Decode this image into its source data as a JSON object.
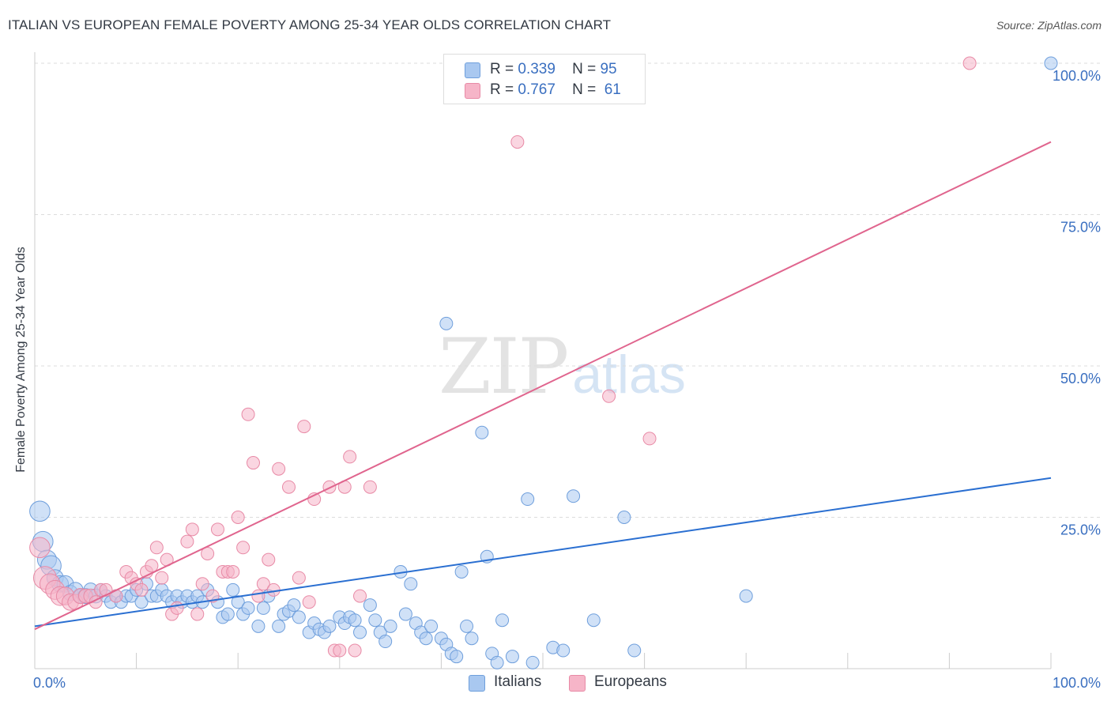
{
  "title": "ITALIAN VS EUROPEAN FEMALE POVERTY AMONG 25-34 YEAR OLDS CORRELATION CHART",
  "source": "Source: ZipAtlas.com",
  "watermark": {
    "zip": "ZIP",
    "atlas": "atlas"
  },
  "legend": {
    "r_label": "R =",
    "n_label": "N =",
    "italians": {
      "r": "0.339",
      "n": "95"
    },
    "europeans": {
      "r": "0.767",
      "n": "61"
    }
  },
  "chart_data": {
    "type": "scatter",
    "ylabel": "Female Poverty Among 25-34 Year Olds",
    "xlim": [
      0,
      100
    ],
    "ylim": [
      0,
      100
    ],
    "x_tick_labels": [
      "0.0%",
      "100.0%"
    ],
    "y_tick_labels": [
      {
        "value": 25,
        "label": "25.0%"
      },
      {
        "value": 50,
        "label": "50.0%"
      },
      {
        "value": 75,
        "label": "75.0%"
      },
      {
        "value": 100,
        "label": "100.0%"
      }
    ],
    "grid": true,
    "series": [
      {
        "name": "Italians",
        "color": "#a9c8f0",
        "stroke": "#6f9fdc",
        "trend_color": "#2a6fd1",
        "trend": {
          "x0": 0,
          "y0": 7.0,
          "x1": 100,
          "y1": 31.5
        },
        "points": [
          [
            0.5,
            26,
            1.6
          ],
          [
            0.8,
            21,
            1.6
          ],
          [
            1.2,
            18,
            1.5
          ],
          [
            1.6,
            17,
            1.6
          ],
          [
            2,
            15,
            1.3
          ],
          [
            2.5,
            14,
            1.3
          ],
          [
            3,
            14,
            1.3
          ],
          [
            3.5,
            12.5,
            1.2
          ],
          [
            4,
            13,
            1.2
          ],
          [
            4.5,
            12,
            1.1
          ],
          [
            5,
            12,
            1.2
          ],
          [
            5.5,
            13,
            1.1
          ],
          [
            6,
            12,
            1.1
          ],
          [
            6.5,
            13,
            1.0
          ],
          [
            7,
            12,
            1.0
          ],
          [
            7.5,
            11,
            1.0
          ],
          [
            8,
            12,
            1.0
          ],
          [
            8.5,
            11,
            1.0
          ],
          [
            9,
            12,
            1.0
          ],
          [
            9.5,
            12,
            1.0
          ],
          [
            10,
            13,
            1.0
          ],
          [
            10.5,
            11,
            1.0
          ],
          [
            11,
            14,
            1.0
          ],
          [
            11.5,
            12,
            1.0
          ],
          [
            12,
            12,
            1.0
          ],
          [
            12.5,
            13,
            1.0
          ],
          [
            13,
            12,
            1.0
          ],
          [
            13.5,
            11,
            1.0
          ],
          [
            14,
            12,
            1.0
          ],
          [
            14.5,
            11,
            1.0
          ],
          [
            15,
            12,
            1.0
          ],
          [
            15.5,
            11,
            1.0
          ],
          [
            16,
            12,
            1.0
          ],
          [
            16.5,
            11,
            1.0
          ],
          [
            17,
            13,
            1.0
          ],
          [
            18,
            11,
            1.0
          ],
          [
            18.5,
            8.5,
            1.0
          ],
          [
            19,
            9,
            1.0
          ],
          [
            19.5,
            13,
            1.0
          ],
          [
            20,
            11,
            1.0
          ],
          [
            20.5,
            9,
            1.0
          ],
          [
            21,
            10,
            1.0
          ],
          [
            22,
            7,
            1.0
          ],
          [
            22.5,
            10,
            1.0
          ],
          [
            23,
            12,
            1.0
          ],
          [
            24,
            7,
            1.0
          ],
          [
            24.5,
            9,
            1.0
          ],
          [
            25,
            9.5,
            1.0
          ],
          [
            25.5,
            10.5,
            1.0
          ],
          [
            26,
            8.5,
            1.0
          ],
          [
            27,
            6,
            1.0
          ],
          [
            27.5,
            7.5,
            1.0
          ],
          [
            28,
            6.5,
            1.0
          ],
          [
            28.5,
            6,
            1.0
          ],
          [
            29,
            7,
            1.0
          ],
          [
            30,
            8.5,
            1.0
          ],
          [
            30.5,
            7.5,
            1.0
          ],
          [
            31,
            8.5,
            1.0
          ],
          [
            31.5,
            8,
            1.0
          ],
          [
            32,
            6,
            1.0
          ],
          [
            33,
            10.5,
            1.0
          ],
          [
            33.5,
            8,
            1.0
          ],
          [
            34,
            6,
            1.0
          ],
          [
            34.5,
            4.5,
            1.0
          ],
          [
            35,
            7,
            1.0
          ],
          [
            36,
            16,
            1.0
          ],
          [
            36.5,
            9,
            1.0
          ],
          [
            37,
            14,
            1.0
          ],
          [
            37.5,
            7.5,
            1.0
          ],
          [
            38,
            6,
            1.0
          ],
          [
            38.5,
            5,
            1.0
          ],
          [
            39,
            7,
            1.0
          ],
          [
            40,
            5,
            1.0
          ],
          [
            40.5,
            4,
            1.0
          ],
          [
            41,
            2.5,
            1.0
          ],
          [
            41.5,
            2,
            1.0
          ],
          [
            42,
            16,
            1.0
          ],
          [
            42.5,
            7,
            1.0
          ],
          [
            43,
            5,
            1.0
          ],
          [
            44,
            39,
            1.0
          ],
          [
            40.5,
            57,
            1.0
          ],
          [
            44.5,
            18.5,
            1.0
          ],
          [
            45,
            2.5,
            1.0
          ],
          [
            45.5,
            1,
            1.0
          ],
          [
            46,
            8,
            1.0
          ],
          [
            47,
            2,
            1.0
          ],
          [
            48.5,
            28,
            1.0
          ],
          [
            49,
            1,
            1.0
          ],
          [
            51,
            3.5,
            1.0
          ],
          [
            52,
            3,
            1.0
          ],
          [
            53,
            28.5,
            1.0
          ],
          [
            55,
            8,
            1.0
          ],
          [
            58,
            25,
            1.0
          ],
          [
            59,
            3,
            1.0
          ],
          [
            70,
            12,
            1.0
          ],
          [
            100,
            100,
            1.0
          ]
        ]
      },
      {
        "name": "Europeans",
        "color": "#f6b5c8",
        "stroke": "#e88aa6",
        "trend_color": "#e0658e",
        "trend": {
          "x0": 0,
          "y0": 6.5,
          "x1": 100,
          "y1": 87.0
        },
        "points": [
          [
            0.5,
            20,
            1.6
          ],
          [
            1,
            15,
            1.8
          ],
          [
            1.5,
            14,
            1.6
          ],
          [
            2,
            13,
            1.5
          ],
          [
            2.5,
            12,
            1.5
          ],
          [
            3,
            12,
            1.4
          ],
          [
            3.5,
            11,
            1.3
          ],
          [
            4,
            11,
            1.2
          ],
          [
            4.5,
            12,
            1.2
          ],
          [
            5,
            12,
            1.1
          ],
          [
            5.5,
            12,
            1.1
          ],
          [
            6,
            11,
            1.0
          ],
          [
            6.5,
            13,
            1.0
          ],
          [
            7,
            13,
            1.0
          ],
          [
            8,
            12,
            1.0
          ],
          [
            9,
            16,
            1.0
          ],
          [
            9.5,
            15,
            1.0
          ],
          [
            10,
            14,
            1.0
          ],
          [
            10.5,
            13,
            1.0
          ],
          [
            11,
            16,
            1.0
          ],
          [
            11.5,
            17,
            1.0
          ],
          [
            12,
            20,
            1.0
          ],
          [
            12.5,
            15,
            1.0
          ],
          [
            13,
            18,
            1.0
          ],
          [
            13.5,
            9,
            1.0
          ],
          [
            14,
            10,
            1.0
          ],
          [
            15,
            21,
            1.0
          ],
          [
            15.5,
            23,
            1.0
          ],
          [
            16,
            9,
            1.0
          ],
          [
            16.5,
            14,
            1.0
          ],
          [
            17,
            19,
            1.0
          ],
          [
            17.5,
            12,
            1.0
          ],
          [
            18,
            23,
            1.0
          ],
          [
            18.5,
            16,
            1.0
          ],
          [
            19,
            16,
            1.0
          ],
          [
            19.5,
            16,
            1.0
          ],
          [
            20,
            25,
            1.0
          ],
          [
            20.5,
            20,
            1.0
          ],
          [
            21,
            42,
            1.0
          ],
          [
            21.5,
            34,
            1.0
          ],
          [
            22,
            12,
            1.0
          ],
          [
            22.5,
            14,
            1.0
          ],
          [
            23,
            18,
            1.0
          ],
          [
            23.5,
            13,
            1.0
          ],
          [
            24,
            33,
            1.0
          ],
          [
            25,
            30,
            1.0
          ],
          [
            26,
            15,
            1.0
          ],
          [
            26.5,
            40,
            1.0
          ],
          [
            27,
            11,
            1.0
          ],
          [
            27.5,
            28,
            1.0
          ],
          [
            29,
            30,
            1.0
          ],
          [
            29.5,
            3,
            1.0
          ],
          [
            30,
            3,
            1.0
          ],
          [
            30.5,
            30,
            1.0
          ],
          [
            31,
            35,
            1.0
          ],
          [
            31.5,
            3,
            1.0
          ],
          [
            32,
            12,
            1.0
          ],
          [
            33,
            30,
            1.0
          ],
          [
            47.5,
            87,
            1.0
          ],
          [
            56.5,
            45,
            1.0
          ],
          [
            60.5,
            38,
            1.0
          ],
          [
            92,
            100,
            1.0
          ]
        ]
      }
    ]
  }
}
